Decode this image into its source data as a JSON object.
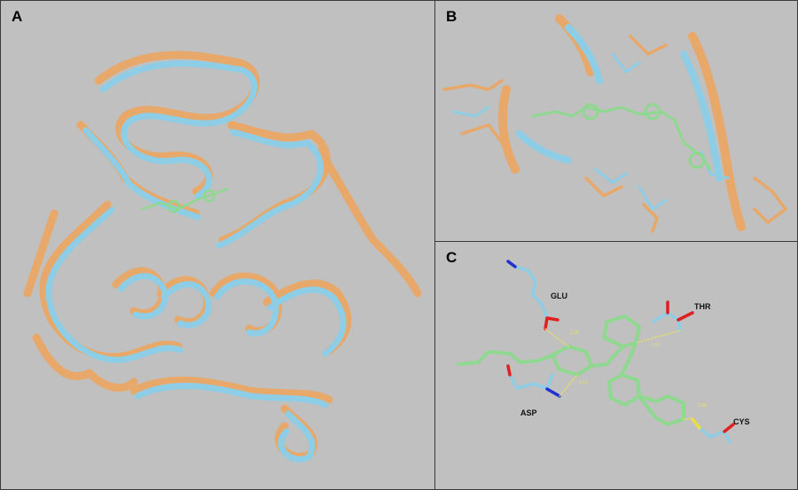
{
  "panels": {
    "a": {
      "letter": "A"
    },
    "b": {
      "letter": "B"
    },
    "c": {
      "letter": "C",
      "residues": {
        "glu": "GLU",
        "thr": "THR",
        "asp": "ASP",
        "cys": "CYS"
      },
      "distances": [
        "2.04",
        "2.01",
        "2.13",
        "2.08"
      ]
    }
  },
  "colors": {
    "background": "#c0c0c0",
    "structure_orange": "#e8a86a",
    "structure_blue": "#8ecde6",
    "ligand_green": "#8fd88f",
    "oxygen": "#e02020",
    "nitrogen": "#2030d0",
    "sulfur": "#e8e040",
    "hbond": "#e8e060"
  }
}
